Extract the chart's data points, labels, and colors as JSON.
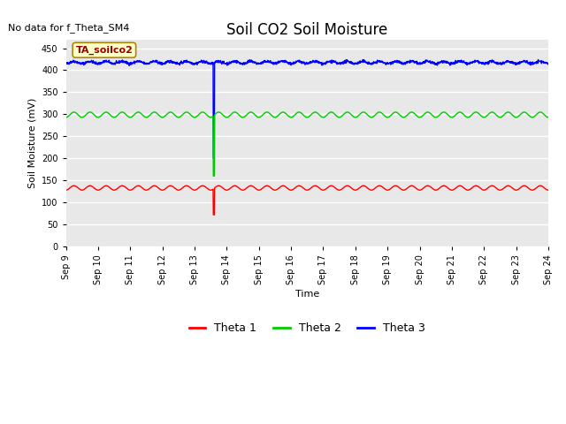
{
  "title": "Soil CO2 Soil Moisture",
  "xlabel": "Time",
  "ylabel": "Soil Moisture (mV)",
  "no_data_text": "No data for f_Theta_SM4",
  "box_label": "TA_soilco2",
  "ylim": [
    0,
    470
  ],
  "yticks": [
    0,
    50,
    100,
    150,
    200,
    250,
    300,
    350,
    400,
    450
  ],
  "xtick_labels": [
    "Sep 9",
    "Sep 10",
    "Sep 11",
    "Sep 12",
    "Sep 13",
    "Sep 14",
    "Sep 15",
    "Sep 16",
    "Sep 17",
    "Sep 18",
    "Sep 19",
    "Sep 20",
    "Sep 21",
    "Sep 22",
    "Sep 23",
    "Sep 24"
  ],
  "n_days": 15,
  "theta1_base": 128,
  "theta1_amp": 10,
  "theta2_base": 293,
  "theta2_amp": 12,
  "theta3_base": 415,
  "theta3_amp": 5,
  "spike_day": 4.6,
  "theta1_spike_low": 72,
  "theta2_spike_low": 160,
  "theta3_spike_low": 200,
  "line_colors": [
    "#ff0000",
    "#00cc00",
    "#0000ff"
  ],
  "legend_labels": [
    "Theta 1",
    "Theta 2",
    "Theta 3"
  ],
  "plot_bg_color": "#e8e8e8",
  "fig_bg_color": "#ffffff",
  "grid_color": "#ffffff",
  "box_facecolor": "#ffffcc",
  "box_edgecolor": "#aa8800",
  "box_textcolor": "#990000",
  "title_fontsize": 12,
  "tick_fontsize": 7,
  "legend_fontsize": 9,
  "ylabel_fontsize": 8,
  "xlabel_fontsize": 8
}
